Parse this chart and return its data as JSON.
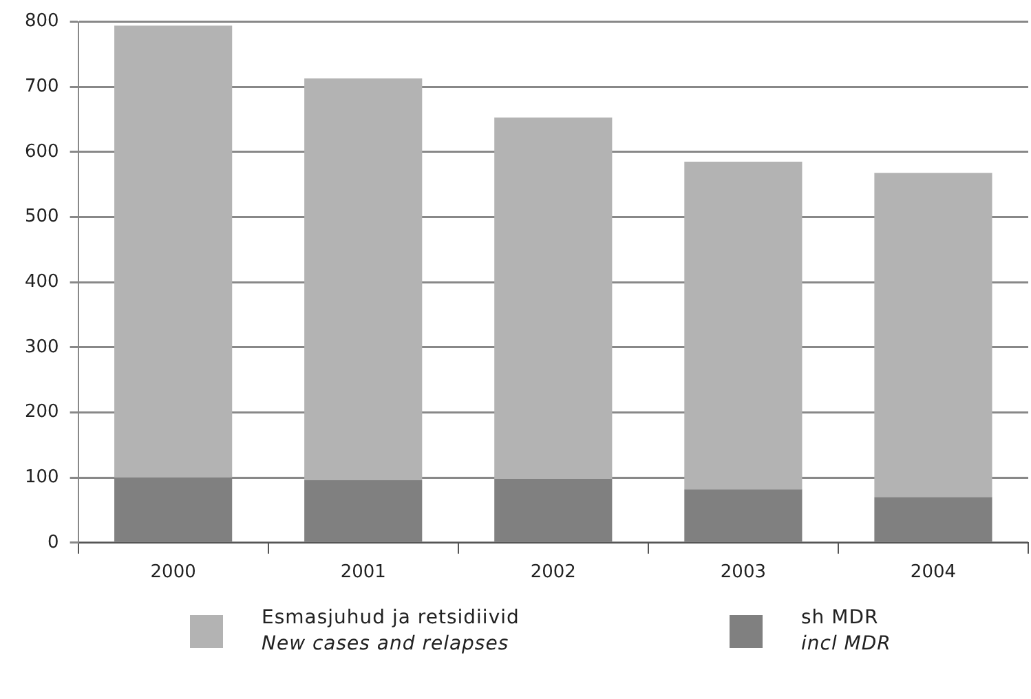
{
  "chart_data": {
    "type": "bar",
    "stacked": true,
    "categories": [
      "2000",
      "2001",
      "2002",
      "2003",
      "2004"
    ],
    "series": [
      {
        "name": "sh MDR\nincl MDR",
        "color": "#808080",
        "values": [
          100,
          96,
          98,
          82,
          70
        ]
      },
      {
        "name": "Esmasjuhud ja retsidiivid\nNew cases and relapses",
        "color": "#b3b3b3",
        "values": [
          694,
          617,
          555,
          503,
          498
        ]
      }
    ],
    "ylim": [
      0,
      800
    ],
    "yticks": [
      0,
      100,
      200,
      300,
      400,
      500,
      600,
      700,
      800
    ],
    "grid": "y",
    "legend": "bottom"
  }
}
